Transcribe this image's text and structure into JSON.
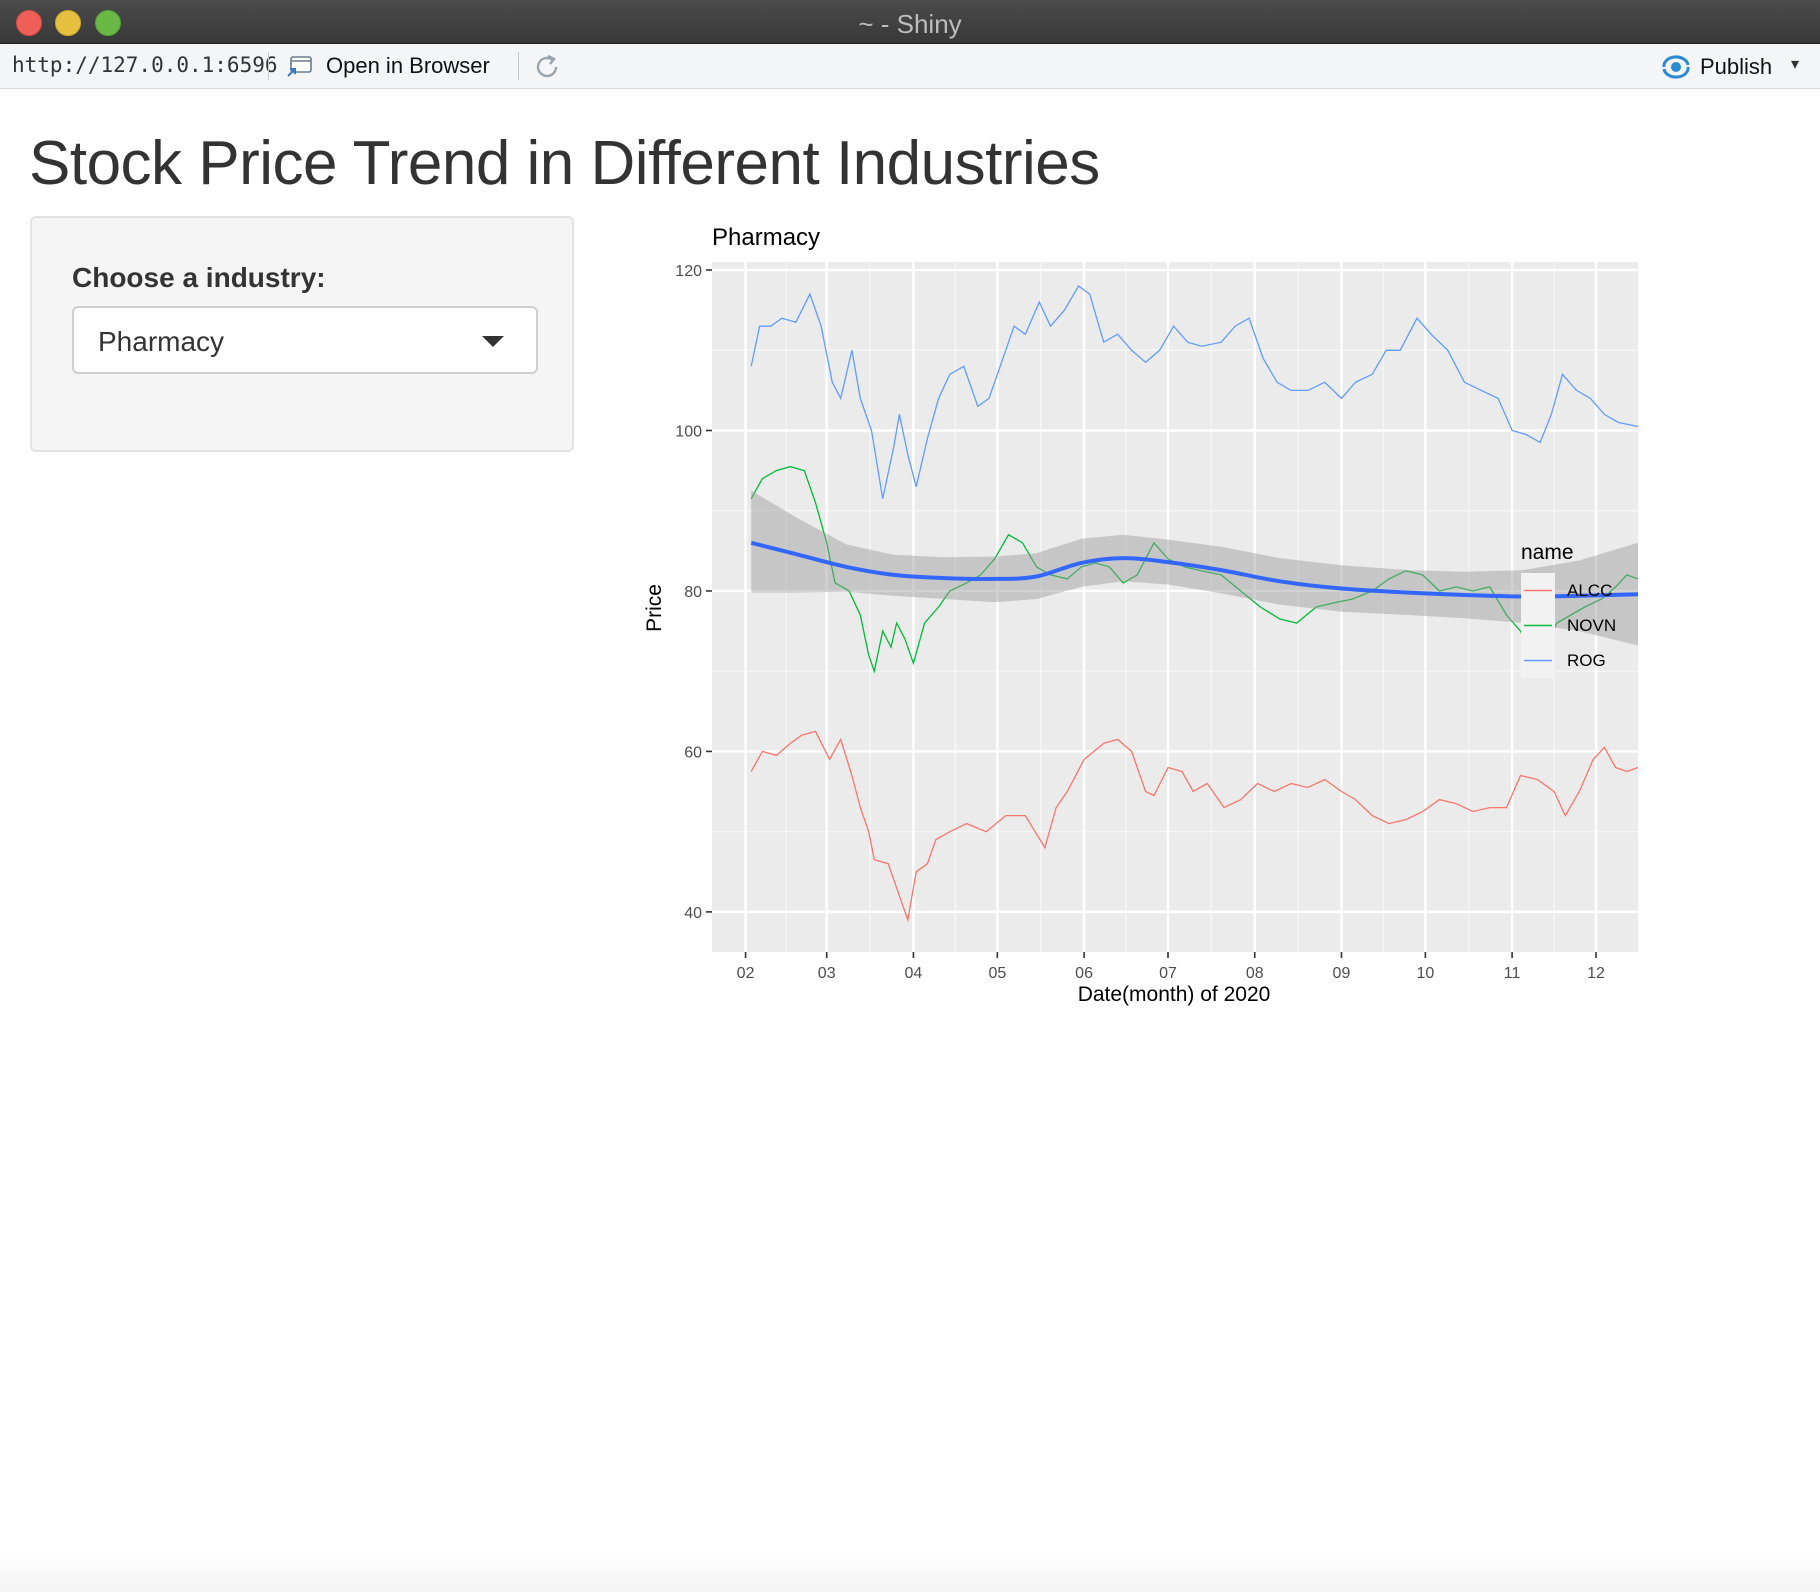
{
  "window": {
    "title": "~ - Shiny"
  },
  "toolbar": {
    "url": "http://127.0.0.1:6596",
    "open_in_browser": "Open in Browser",
    "publish": "Publish"
  },
  "page": {
    "title": "Stock Price Trend in Different Industries",
    "sidebar": {
      "label": "Choose a industry:",
      "selected": "Pharmacy"
    }
  },
  "colors": {
    "ALCC": "#F8766D",
    "NOVN": "#00BA38",
    "ROG": "#619CFF",
    "smooth": "#3366FF",
    "panel_bg": "#EBEBEB"
  },
  "chart_data": {
    "type": "line",
    "title": "Pharmacy",
    "xlabel": "Date(month) of 2020",
    "ylabel": "Price",
    "x_ticks": [
      "02",
      "03",
      "04",
      "05",
      "06",
      "07",
      "08",
      "09",
      "10",
      "11",
      "12"
    ],
    "y_ticks": [
      40,
      60,
      80,
      100,
      120
    ],
    "xlim": [
      "2020-01-20",
      "2020-12-16"
    ],
    "ylim": [
      35,
      121
    ],
    "grid": true,
    "legend": {
      "title": "name",
      "position": "right"
    },
    "series": [
      {
        "name": "ALCC",
        "points": [
          [
            "2020-02-03",
            57.5
          ],
          [
            "2020-02-07",
            60
          ],
          [
            "2020-02-12",
            59.5
          ],
          [
            "2020-02-17",
            61
          ],
          [
            "2020-02-21",
            62
          ],
          [
            "2020-02-26",
            62.5
          ],
          [
            "2020-03-02",
            59
          ],
          [
            "2020-03-06",
            61.5
          ],
          [
            "2020-03-10",
            57
          ],
          [
            "2020-03-13",
            53
          ],
          [
            "2020-03-16",
            50
          ],
          [
            "2020-03-18",
            46.5
          ],
          [
            "2020-03-23",
            46
          ],
          [
            "2020-03-25",
            44
          ],
          [
            "2020-03-27",
            42
          ],
          [
            "2020-03-30",
            39
          ],
          [
            "2020-04-02",
            45
          ],
          [
            "2020-04-06",
            46
          ],
          [
            "2020-04-09",
            49
          ],
          [
            "2020-04-14",
            50
          ],
          [
            "2020-04-20",
            51
          ],
          [
            "2020-04-27",
            50
          ],
          [
            "2020-05-04",
            52
          ],
          [
            "2020-05-11",
            52
          ],
          [
            "2020-05-18",
            48
          ],
          [
            "2020-05-22",
            53
          ],
          [
            "2020-05-26",
            55
          ],
          [
            "2020-06-01",
            59
          ],
          [
            "2020-06-08",
            61
          ],
          [
            "2020-06-13",
            61.5
          ],
          [
            "2020-06-18",
            60
          ],
          [
            "2020-06-23",
            55
          ],
          [
            "2020-06-26",
            54.5
          ],
          [
            "2020-07-01",
            58
          ],
          [
            "2020-07-06",
            57.5
          ],
          [
            "2020-07-10",
            55
          ],
          [
            "2020-07-15",
            56
          ],
          [
            "2020-07-21",
            53
          ],
          [
            "2020-07-27",
            54
          ],
          [
            "2020-08-02",
            56
          ],
          [
            "2020-08-08",
            55
          ],
          [
            "2020-08-14",
            56
          ],
          [
            "2020-08-20",
            55.5
          ],
          [
            "2020-08-26",
            56.5
          ],
          [
            "2020-09-01",
            55
          ],
          [
            "2020-09-06",
            54
          ],
          [
            "2020-09-12",
            52
          ],
          [
            "2020-09-18",
            51
          ],
          [
            "2020-09-24",
            51.5
          ],
          [
            "2020-09-30",
            52.5
          ],
          [
            "2020-10-06",
            54
          ],
          [
            "2020-10-12",
            53.5
          ],
          [
            "2020-10-18",
            52.5
          ],
          [
            "2020-10-24",
            53
          ],
          [
            "2020-10-30",
            53
          ],
          [
            "2020-11-04",
            57
          ],
          [
            "2020-11-10",
            56.5
          ],
          [
            "2020-11-16",
            55
          ],
          [
            "2020-11-20",
            52
          ],
          [
            "2020-11-25",
            55
          ],
          [
            "2020-11-30",
            59
          ],
          [
            "2020-12-04",
            60.5
          ],
          [
            "2020-12-08",
            58
          ],
          [
            "2020-12-12",
            57.5
          ],
          [
            "2020-12-16",
            58
          ]
        ]
      },
      {
        "name": "NOVN",
        "points": [
          [
            "2020-02-03",
            91.5
          ],
          [
            "2020-02-07",
            94
          ],
          [
            "2020-02-12",
            95
          ],
          [
            "2020-02-17",
            95.5
          ],
          [
            "2020-02-22",
            95
          ],
          [
            "2020-02-26",
            91
          ],
          [
            "2020-03-01",
            86
          ],
          [
            "2020-03-04",
            81
          ],
          [
            "2020-03-09",
            80
          ],
          [
            "2020-03-13",
            77
          ],
          [
            "2020-03-16",
            72
          ],
          [
            "2020-03-18",
            70
          ],
          [
            "2020-03-21",
            75
          ],
          [
            "2020-03-24",
            73
          ],
          [
            "2020-03-26",
            76
          ],
          [
            "2020-03-29",
            74
          ],
          [
            "2020-04-01",
            71
          ],
          [
            "2020-04-05",
            76
          ],
          [
            "2020-04-10",
            78
          ],
          [
            "2020-04-14",
            80
          ],
          [
            "2020-04-20",
            81
          ],
          [
            "2020-04-25",
            82
          ],
          [
            "2020-04-30",
            84
          ],
          [
            "2020-05-05",
            87
          ],
          [
            "2020-05-10",
            86
          ],
          [
            "2020-05-15",
            83
          ],
          [
            "2020-05-20",
            82
          ],
          [
            "2020-05-26",
            81.5
          ],
          [
            "2020-05-31",
            83
          ],
          [
            "2020-06-05",
            83.5
          ],
          [
            "2020-06-10",
            83
          ],
          [
            "2020-06-15",
            81
          ],
          [
            "2020-06-20",
            82
          ],
          [
            "2020-06-26",
            86
          ],
          [
            "2020-07-01",
            84
          ],
          [
            "2020-07-07",
            83
          ],
          [
            "2020-07-13",
            82.5
          ],
          [
            "2020-07-20",
            82
          ],
          [
            "2020-07-27",
            80
          ],
          [
            "2020-08-03",
            78
          ],
          [
            "2020-08-10",
            76.5
          ],
          [
            "2020-08-16",
            76
          ],
          [
            "2020-08-23",
            78
          ],
          [
            "2020-08-29",
            78.5
          ],
          [
            "2020-09-05",
            79
          ],
          [
            "2020-09-12",
            80
          ],
          [
            "2020-09-18",
            81.5
          ],
          [
            "2020-09-24",
            82.5
          ],
          [
            "2020-09-30",
            82
          ],
          [
            "2020-10-06",
            80
          ],
          [
            "2020-10-12",
            80.5
          ],
          [
            "2020-10-18",
            80
          ],
          [
            "2020-10-24",
            80.5
          ],
          [
            "2020-10-30",
            77
          ],
          [
            "2020-11-04",
            75
          ],
          [
            "2020-11-08",
            72
          ],
          [
            "2020-11-12",
            72.5
          ],
          [
            "2020-11-17",
            76
          ],
          [
            "2020-11-22",
            77
          ],
          [
            "2020-11-27",
            78
          ],
          [
            "2020-12-03",
            79
          ],
          [
            "2020-12-08",
            80.5
          ],
          [
            "2020-12-12",
            82
          ],
          [
            "2020-12-16",
            81.5
          ]
        ]
      },
      {
        "name": "ROG",
        "points": [
          [
            "2020-02-03",
            108
          ],
          [
            "2020-02-06",
            113
          ],
          [
            "2020-02-10",
            113
          ],
          [
            "2020-02-14",
            114
          ],
          [
            "2020-02-19",
            113.5
          ],
          [
            "2020-02-24",
            117
          ],
          [
            "2020-02-28",
            113
          ],
          [
            "2020-03-03",
            106
          ],
          [
            "2020-03-06",
            104
          ],
          [
            "2020-03-10",
            110
          ],
          [
            "2020-03-13",
            104
          ],
          [
            "2020-03-17",
            100
          ],
          [
            "2020-03-21",
            91.5
          ],
          [
            "2020-03-25",
            98
          ],
          [
            "2020-03-27",
            102
          ],
          [
            "2020-03-30",
            97
          ],
          [
            "2020-04-02",
            93
          ],
          [
            "2020-04-06",
            99
          ],
          [
            "2020-04-10",
            104
          ],
          [
            "2020-04-14",
            107
          ],
          [
            "2020-04-19",
            108
          ],
          [
            "2020-04-24",
            103
          ],
          [
            "2020-04-28",
            104
          ],
          [
            "2020-05-02",
            108
          ],
          [
            "2020-05-07",
            113
          ],
          [
            "2020-05-11",
            112
          ],
          [
            "2020-05-16",
            116
          ],
          [
            "2020-05-20",
            113
          ],
          [
            "2020-05-25",
            115
          ],
          [
            "2020-05-30",
            118
          ],
          [
            "2020-06-03",
            117
          ],
          [
            "2020-06-08",
            111
          ],
          [
            "2020-06-13",
            112
          ],
          [
            "2020-06-18",
            110
          ],
          [
            "2020-06-23",
            108.5
          ],
          [
            "2020-06-28",
            110
          ],
          [
            "2020-07-03",
            113
          ],
          [
            "2020-07-08",
            111
          ],
          [
            "2020-07-13",
            110.5
          ],
          [
            "2020-07-20",
            111
          ],
          [
            "2020-07-25",
            113
          ],
          [
            "2020-07-30",
            114
          ],
          [
            "2020-08-04",
            109
          ],
          [
            "2020-08-09",
            106
          ],
          [
            "2020-08-14",
            105
          ],
          [
            "2020-08-20",
            105
          ],
          [
            "2020-08-26",
            106
          ],
          [
            "2020-09-01",
            104
          ],
          [
            "2020-09-06",
            106
          ],
          [
            "2020-09-12",
            107
          ],
          [
            "2020-09-17",
            110
          ],
          [
            "2020-09-22",
            110
          ],
          [
            "2020-09-28",
            114
          ],
          [
            "2020-10-03",
            112
          ],
          [
            "2020-10-09",
            110
          ],
          [
            "2020-10-15",
            106
          ],
          [
            "2020-10-21",
            105
          ],
          [
            "2020-10-27",
            104
          ],
          [
            "2020-11-01",
            100
          ],
          [
            "2020-11-06",
            99.5
          ],
          [
            "2020-11-11",
            98.5
          ],
          [
            "2020-11-15",
            102
          ],
          [
            "2020-11-19",
            107
          ],
          [
            "2020-11-24",
            105
          ],
          [
            "2020-11-29",
            104
          ],
          [
            "2020-12-04",
            102
          ],
          [
            "2020-12-09",
            101
          ],
          [
            "2020-12-16",
            100.5
          ]
        ]
      }
    ],
    "smooth": {
      "points": [
        [
          "2020-02-03",
          86
        ],
        [
          "2020-02-20",
          84.5
        ],
        [
          "2020-03-08",
          83
        ],
        [
          "2020-03-25",
          82
        ],
        [
          "2020-04-12",
          81.6
        ],
        [
          "2020-04-30",
          81.5
        ],
        [
          "2020-05-15",
          81.8
        ],
        [
          "2020-05-31",
          83.5
        ],
        [
          "2020-06-15",
          84.1
        ],
        [
          "2020-07-01",
          83.6
        ],
        [
          "2020-07-20",
          82.6
        ],
        [
          "2020-08-10",
          81.2
        ],
        [
          "2020-09-01",
          80.3
        ],
        [
          "2020-09-25",
          79.8
        ],
        [
          "2020-10-15",
          79.5
        ],
        [
          "2020-11-05",
          79.3
        ],
        [
          "2020-11-25",
          79.4
        ],
        [
          "2020-12-16",
          79.6
        ]
      ],
      "band": [
        [
          "2020-02-03",
          92.5,
          79.8
        ],
        [
          "2020-02-20",
          89,
          79.8
        ],
        [
          "2020-03-08",
          85.8,
          79.9
        ],
        [
          "2020-03-25",
          84.5,
          79.4
        ],
        [
          "2020-04-12",
          84.2,
          79.0
        ],
        [
          "2020-04-30",
          84.3,
          78.6
        ],
        [
          "2020-05-15",
          84.7,
          79.0
        ],
        [
          "2020-05-31",
          86.5,
          80.5
        ],
        [
          "2020-06-15",
          87,
          81.2
        ],
        [
          "2020-07-01",
          86.4,
          80.8
        ],
        [
          "2020-07-20",
          85.5,
          79.7
        ],
        [
          "2020-08-10",
          84.1,
          78.3
        ],
        [
          "2020-09-01",
          83.2,
          77.4
        ],
        [
          "2020-09-25",
          82.6,
          77.0
        ],
        [
          "2020-10-15",
          82.4,
          76.6
        ],
        [
          "2020-11-05",
          82.6,
          76.0
        ],
        [
          "2020-11-25",
          83.8,
          75.0
        ],
        [
          "2020-12-16",
          86,
          73.2
        ]
      ]
    }
  }
}
